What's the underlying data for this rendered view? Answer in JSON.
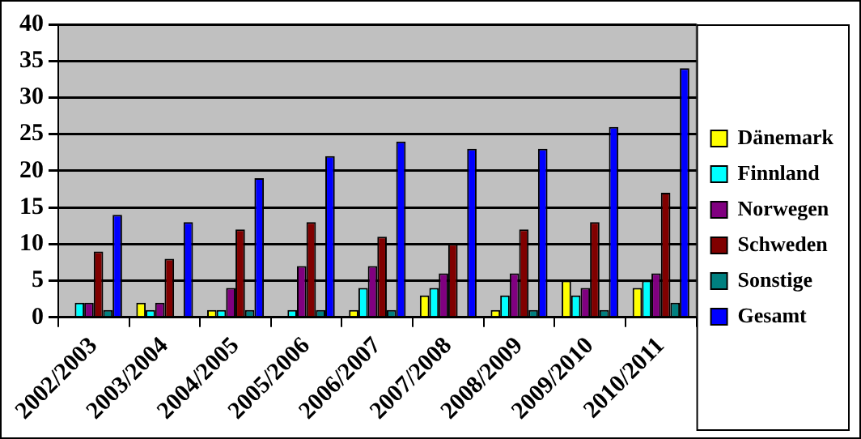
{
  "chart_data": {
    "type": "bar",
    "categories": [
      "2002/2003",
      "2003/2004",
      "2004/2005",
      "2005/2006",
      "2006/2007",
      "2007/2008",
      "2008/2009",
      "2009/2010",
      "2010/2011"
    ],
    "series": [
      {
        "name": "Dänemark",
        "color": "#ffff00",
        "values": [
          0,
          2,
          1,
          0,
          1,
          3,
          1,
          5,
          4
        ]
      },
      {
        "name": "Finnland",
        "color": "#00ffff",
        "values": [
          2,
          1,
          1,
          1,
          4,
          4,
          3,
          3,
          5
        ]
      },
      {
        "name": "Norwegen",
        "color": "#800080",
        "values": [
          2,
          2,
          4,
          7,
          7,
          6,
          6,
          4,
          6
        ]
      },
      {
        "name": "Schweden",
        "color": "#800000",
        "values": [
          9,
          8,
          12,
          13,
          11,
          10,
          12,
          13,
          17
        ]
      },
      {
        "name": "Sonstige",
        "color": "#008080",
        "values": [
          1,
          0,
          1,
          1,
          1,
          0,
          1,
          1,
          2
        ]
      },
      {
        "name": "Gesamt",
        "color": "#0000ff",
        "values": [
          14,
          13,
          19,
          22,
          24,
          23,
          23,
          26,
          34
        ]
      }
    ],
    "ylim": [
      0,
      40
    ],
    "yticks": [
      0,
      5,
      10,
      15,
      20,
      25,
      30,
      35,
      40
    ],
    "grid": "y",
    "legend": "right"
  }
}
